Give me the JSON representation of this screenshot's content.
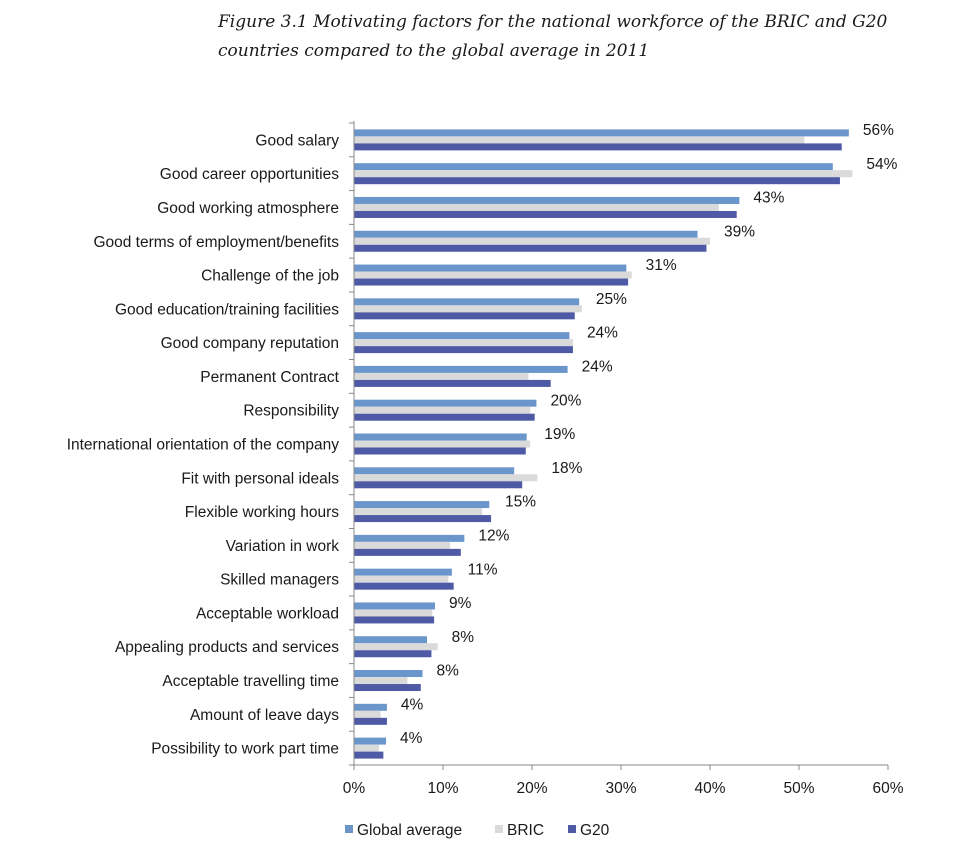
{
  "chart_data": {
    "type": "bar",
    "orientation": "horizontal",
    "title_lines": [
      "Figure 3.1 Motivating factors for the national workforce of the BRIC and G20",
      "countries compared to the global average in 2011"
    ],
    "categories": [
      "Good salary",
      "Good career opportunities",
      "Good working atmosphere",
      "Good terms of employment/benefits",
      "Challenge of the job",
      "Good education/training facilities",
      "Good company reputation",
      "Permanent Contract",
      "Responsibility",
      "International orientation of the company",
      "Fit with personal ideals",
      "Flexible working hours",
      "Variation in work",
      "Skilled managers",
      "Acceptable workload",
      "Appealing products and services",
      "Acceptable travelling time",
      "Amount of leave days",
      "Possibility to work part time"
    ],
    "series": [
      {
        "name": "Global average",
        "color": "#6b96cc",
        "values": [
          55.6,
          53.8,
          43.3,
          38.6,
          30.6,
          25.3,
          24.2,
          24.0,
          20.5,
          19.4,
          18.0,
          15.2,
          12.4,
          11.0,
          9.1,
          8.2,
          7.7,
          3.7,
          3.6
        ]
      },
      {
        "name": "BRIC",
        "color": "#dadada",
        "values": [
          50.6,
          56.0,
          41.0,
          40.0,
          31.2,
          25.6,
          24.6,
          19.6,
          19.8,
          19.8,
          20.6,
          14.4,
          10.8,
          10.6,
          8.8,
          9.4,
          6.0,
          3.0,
          2.8
        ]
      },
      {
        "name": "G20",
        "color": "#4e5aa6",
        "values": [
          54.8,
          54.6,
          43.0,
          39.6,
          30.8,
          24.8,
          24.6,
          22.1,
          20.3,
          19.3,
          18.9,
          15.4,
          12.0,
          11.2,
          9.0,
          8.7,
          7.5,
          3.7,
          3.3
        ]
      }
    ],
    "data_labels": [
      "56%",
      "54%",
      "43%",
      "39%",
      "31%",
      "25%",
      "24%",
      "24%",
      "20%",
      "19%",
      "18%",
      "15%",
      "12%",
      "11%",
      "9%",
      "8%",
      "8%",
      "4%",
      "4%"
    ],
    "x_ticks": [
      0,
      10,
      20,
      30,
      40,
      50,
      60
    ],
    "x_tick_labels": [
      "0%",
      "10%",
      "20%",
      "30%",
      "40%",
      "50%",
      "60%"
    ],
    "xlim": [
      0,
      60
    ],
    "grid": false,
    "legend_position": "bottom"
  }
}
